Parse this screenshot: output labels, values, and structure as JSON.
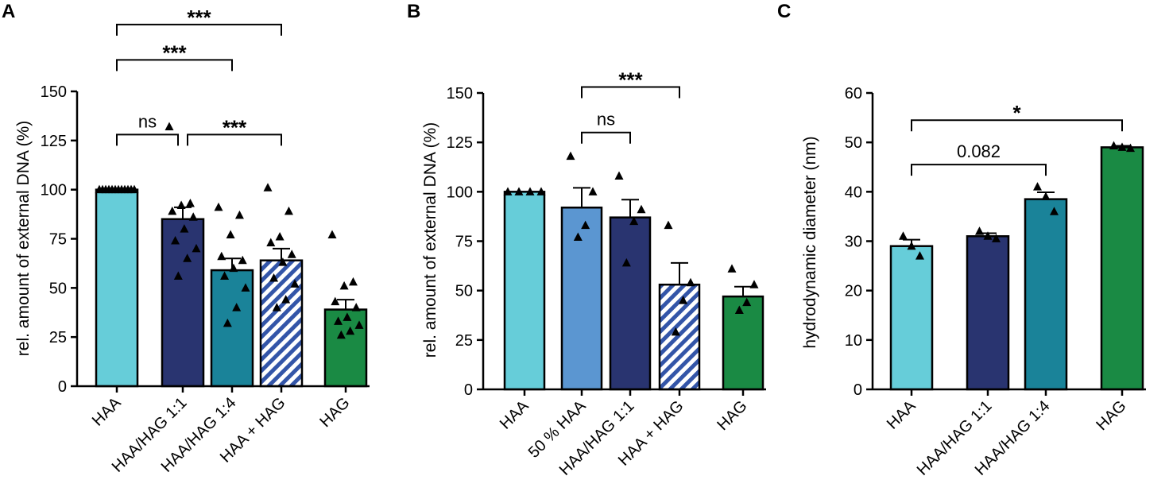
{
  "chart_data": [
    {
      "panel": "A",
      "type": "bar",
      "ylabel": "rel. amount of external DNA (%)",
      "ylim": [
        0,
        150
      ],
      "yticks": [
        0,
        25,
        50,
        75,
        100,
        125,
        150
      ],
      "ytick_labels": [
        "0",
        "25",
        "50",
        "75",
        "100",
        "125",
        "150"
      ],
      "categories": [
        "HAA",
        "HAA/HAG 1:1",
        "HAA/HAG 1:4",
        "HAA + HAG",
        "HAG"
      ],
      "values": [
        100,
        85,
        59,
        64,
        39
      ],
      "sem": [
        0,
        6,
        6,
        6,
        5
      ],
      "fill": [
        "#66cdd9",
        "#293470",
        "#1a8399",
        "hatch",
        "#1a8a44"
      ],
      "points": [
        [
          100,
          100,
          100,
          100,
          100,
          100,
          100,
          100,
          100,
          100,
          100,
          100
        ],
        [
          132,
          93,
          92,
          89,
          86,
          80,
          74,
          70,
          65,
          56
        ],
        [
          91,
          87,
          77,
          66,
          64,
          60,
          56,
          50,
          40,
          32
        ],
        [
          101,
          89,
          76,
          73,
          67,
          63,
          55,
          52,
          44,
          40
        ],
        [
          77,
          53,
          51,
          43,
          40,
          35,
          33,
          31,
          28,
          26
        ]
      ],
      "comparisons": [
        {
          "from": 0,
          "to": 1,
          "label": "ns",
          "y": 128
        },
        {
          "from": 1,
          "to": 3,
          "label": "***",
          "y": 128
        },
        {
          "from": 0,
          "to": 2,
          "label": "***",
          "y": 166
        },
        {
          "from": 0,
          "to": 3,
          "label": "***",
          "y": 184
        }
      ]
    },
    {
      "panel": "B",
      "type": "bar",
      "ylabel": "rel. amount of external DNA (%)",
      "ylim": [
        0,
        150
      ],
      "yticks": [
        0,
        25,
        50,
        75,
        100,
        125,
        150
      ],
      "ytick_labels": [
        "0",
        "25",
        "50",
        "75",
        "100",
        "125",
        "150"
      ],
      "categories": [
        "HAA",
        "50 % HAA",
        "HAA/HAG 1:1",
        "HAA + HAG",
        "HAG"
      ],
      "values": [
        100,
        92,
        87,
        53,
        47
      ],
      "sem": [
        0,
        10,
        9,
        11,
        5
      ],
      "fill": [
        "#66cdd9",
        "#5b96d1",
        "#293470",
        "hatch",
        "#1a8a44"
      ],
      "points": [
        [
          100,
          100,
          100,
          100
        ],
        [
          118,
          100,
          83,
          77
        ],
        [
          108,
          91,
          85,
          64
        ],
        [
          83,
          54,
          45,
          29
        ],
        [
          61,
          53,
          44,
          40
        ]
      ],
      "comparisons": [
        {
          "from": 1,
          "to": 2,
          "label": "ns",
          "y": 130
        },
        {
          "from": 1,
          "to": 3,
          "label": "***",
          "y": 153
        }
      ]
    },
    {
      "panel": "C",
      "type": "bar",
      "ylabel": "hydrodynamic diameter  (nm)",
      "ylim": [
        0,
        60
      ],
      "yticks": [
        0,
        10,
        20,
        30,
        40,
        50,
        60
      ],
      "ytick_labels": [
        "0",
        "10",
        "20",
        "30",
        "40",
        "50",
        "60"
      ],
      "categories": [
        "HAA",
        "HAA/HAG 1:1",
        "HAA/HAG 1:4",
        "HAG"
      ],
      "values": [
        29,
        31,
        38.5,
        49
      ],
      "sem": [
        1.3,
        0.6,
        1.4,
        0.3
      ],
      "fill": [
        "#66cdd9",
        "#293470",
        "#1a8399",
        "#1a8a44"
      ],
      "points": [
        [
          31,
          29,
          27
        ],
        [
          32,
          31,
          30.5
        ],
        [
          41,
          39,
          36
        ],
        [
          49.3,
          49,
          48.8
        ]
      ],
      "comparisons": [
        {
          "from": 0,
          "to": 2,
          "label": "0.082",
          "y": 45.5
        },
        {
          "from": 0,
          "to": 3,
          "label": "*",
          "y": 54.5
        }
      ]
    }
  ]
}
